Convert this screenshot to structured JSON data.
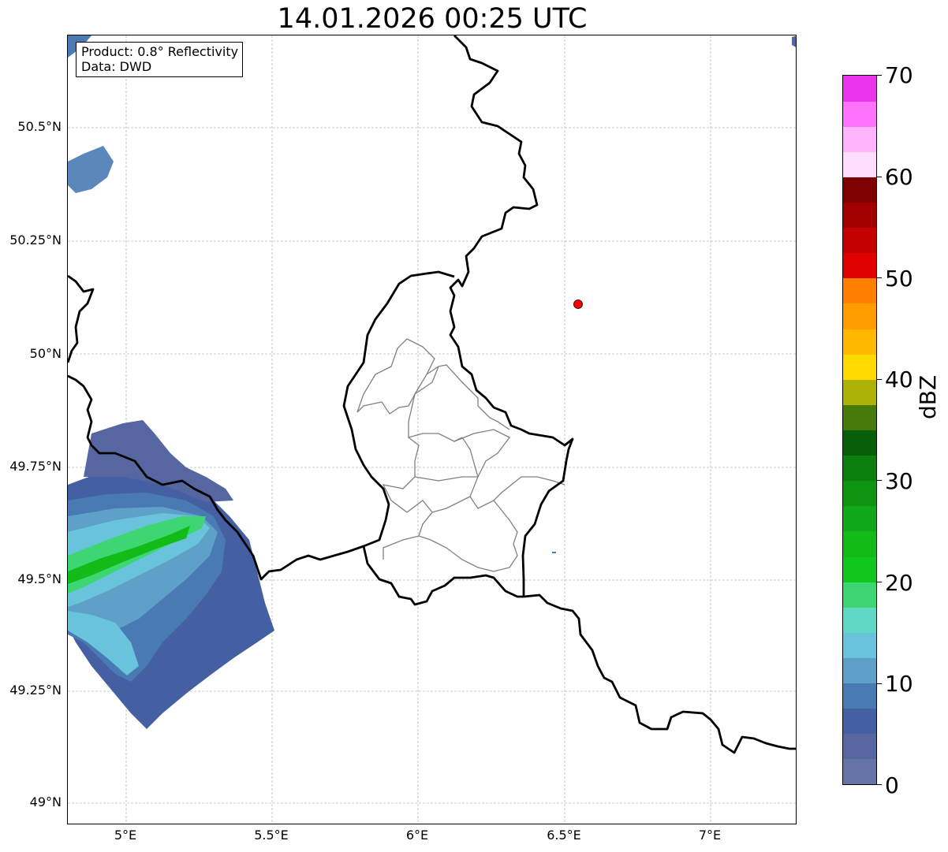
{
  "title": "14.01.2026 00:25 UTC",
  "info": {
    "product": "Product: 0.8° Reflectivity",
    "data": "Data: DWD"
  },
  "axes": {
    "y_ticks": [
      {
        "label": "50.5°N",
        "lat": 50.5
      },
      {
        "label": "50.25°N",
        "lat": 50.25
      },
      {
        "label": "50°N",
        "lat": 50.0
      },
      {
        "label": "49.75°N",
        "lat": 49.75
      },
      {
        "label": "49.5°N",
        "lat": 49.5
      },
      {
        "label": "49.25°N",
        "lat": 49.25
      },
      {
        "label": "49°N",
        "lat": 49.0
      }
    ],
    "x_ticks": [
      {
        "label": "5°E",
        "lon": 5.0
      },
      {
        "label": "5.5°E",
        "lon": 5.5
      },
      {
        "label": "6°E",
        "lon": 6.0
      },
      {
        "label": "6.5°E",
        "lon": 6.5
      },
      {
        "label": "7°E",
        "lon": 7.0
      }
    ],
    "lon_range": [
      4.8,
      7.3
    ],
    "lat_range": [
      48.95,
      50.7
    ],
    "grid": true
  },
  "radar_marker": {
    "lon": 6.548,
    "lat": 50.108,
    "color": "#ff0000"
  },
  "colorbar": {
    "label": "dBZ",
    "min": 0,
    "max": 70,
    "ticks": [
      "0",
      "10",
      "20",
      "30",
      "40",
      "50",
      "60",
      "70"
    ],
    "colors": [
      "#6573a6",
      "#5566a0",
      "#4460a3",
      "#4a7ab3",
      "#5ea0c8",
      "#68c3db",
      "#60d8c6",
      "#3dd672",
      "#10c61f",
      "#12bb18",
      "#10a818",
      "#0f9412",
      "#0d7f0e",
      "#085e09",
      "#477a0b",
      "#aeb106",
      "#ffd900",
      "#ffb900",
      "#ff9d00",
      "#ff7f00",
      "#e00000",
      "#c40000",
      "#a20000",
      "#7e0000",
      "#ffddff",
      "#ffb4fd",
      "#ff72fb",
      "#ea35ea"
    ]
  }
}
